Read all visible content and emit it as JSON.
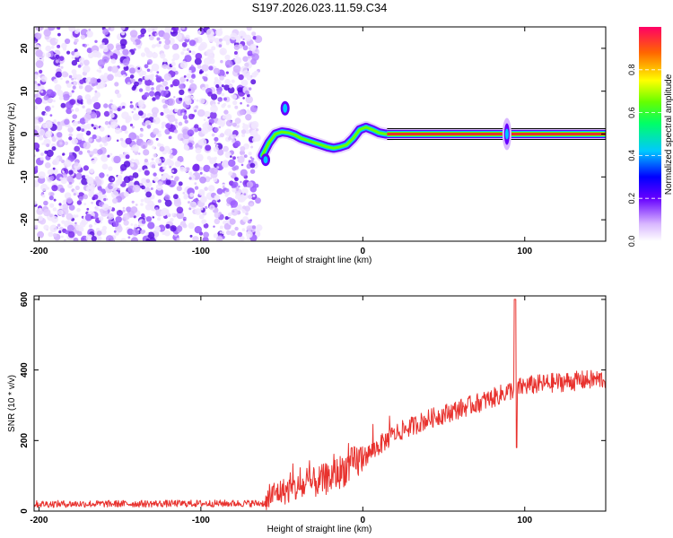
{
  "title": "S197.2026.023.11.59.C34",
  "colors": {
    "track": "#e8322e",
    "noise": "#7a2cf0",
    "axis": "#000000"
  },
  "chart_data": [
    {
      "type": "heatmap",
      "name": "spectrogram",
      "xlabel": "Height of straight line (km)",
      "ylabel": "Frequency (Hz)",
      "xlim": [
        -203,
        150
      ],
      "ylim": [
        -25,
        25
      ],
      "xticks": [
        -200,
        -100,
        0,
        100
      ],
      "xtick_labels": [
        "-200",
        "-100",
        "0",
        "100"
      ],
      "yticks": [
        20,
        10,
        0,
        -10,
        -20
      ],
      "ytick_labels": [
        "20",
        "10",
        "0",
        "-10",
        "-20"
      ],
      "noise_region_x": [
        -203,
        -64
      ],
      "ridge": {
        "x": [
          -62,
          -58,
          -54,
          -50,
          -46,
          -42,
          -38,
          -34,
          -30,
          -26,
          -22,
          -18,
          -14,
          -10,
          -6,
          -2,
          2,
          6,
          10,
          14,
          18
        ],
        "y": [
          -5,
          -2,
          0,
          0.5,
          0.3,
          -0.2,
          -1,
          -1.5,
          -2,
          -2.5,
          -3,
          -3.3,
          -3,
          -2.5,
          -1,
          1,
          1.6,
          1,
          0.3,
          0,
          0
        ]
      },
      "steady_line": {
        "x_start": 15,
        "x_end": 150,
        "frequency": 0
      },
      "spike_x": 89,
      "colorbar": {
        "label": "Normalized spectral amplitude",
        "ticks": [
          0.0,
          0.2,
          0.4,
          0.6,
          0.8
        ],
        "tick_labels": [
          "0.0",
          "0.2",
          "0.4",
          "0.6",
          "0.8"
        ],
        "range": [
          0,
          1
        ]
      }
    },
    {
      "type": "line",
      "name": "snr",
      "xlabel": "Height of straight line (km)",
      "ylabel": "SNR (10 * v/v)",
      "xlim": [
        -203,
        150
      ],
      "ylim": [
        0,
        610
      ],
      "xticks": [
        -200,
        -100,
        0,
        100
      ],
      "xtick_labels": [
        "-200",
        "-100",
        "0",
        "100"
      ],
      "yticks": [
        0,
        200,
        400,
        600
      ],
      "ytick_labels": [
        "0",
        "200",
        "400",
        "600"
      ],
      "trend": {
        "x": [
          -203,
          -60,
          -55,
          -40,
          -20,
          0,
          20,
          40,
          60,
          80,
          90,
          100,
          120,
          150
        ],
        "y": [
          20,
          22,
          50,
          65,
          95,
          150,
          220,
          260,
          290,
          320,
          340,
          355,
          365,
          375
        ]
      },
      "spike": {
        "x": 94,
        "y_max": 600,
        "y_min": 180
      }
    }
  ]
}
